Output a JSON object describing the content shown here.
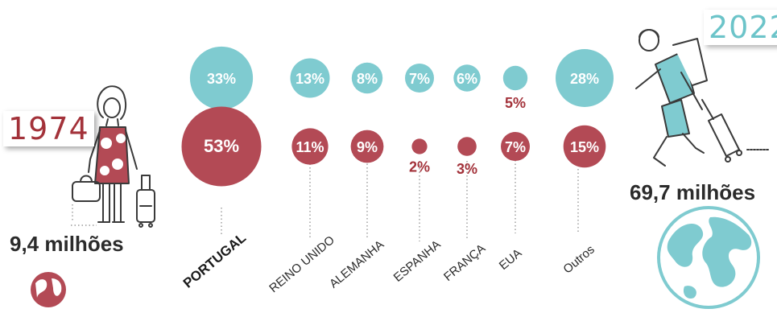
{
  "years": {
    "start": "1974",
    "end": "2022"
  },
  "totals": {
    "start": "9,4 milhões",
    "end": "69,7 milhões"
  },
  "colors": {
    "y1974": "#b34a55",
    "y2022": "#7fcbd0",
    "label_1974": "#a3323a"
  },
  "icons": {
    "left": "woman-traveler-icon",
    "right": "man-traveler-icon",
    "globe": "globe-icon"
  },
  "chart_data": {
    "type": "bubble",
    "categories": [
      "PORTUGAL",
      "REINO UNIDO",
      "ALEMANHA",
      "ESPANHA",
      "FRANÇA",
      "EUA",
      "Outros"
    ],
    "series": [
      {
        "name": "2022",
        "values": [
          33,
          13,
          8,
          7,
          6,
          5,
          28
        ],
        "labels": [
          "33%",
          "13%",
          "8%",
          "7%",
          "6%",
          "5%",
          "28%"
        ]
      },
      {
        "name": "1974",
        "values": [
          53,
          11,
          9,
          2,
          3,
          7,
          15
        ],
        "labels": [
          "53%",
          "11%",
          "9%",
          "2%",
          "3%",
          "7%",
          "15%"
        ]
      }
    ]
  }
}
